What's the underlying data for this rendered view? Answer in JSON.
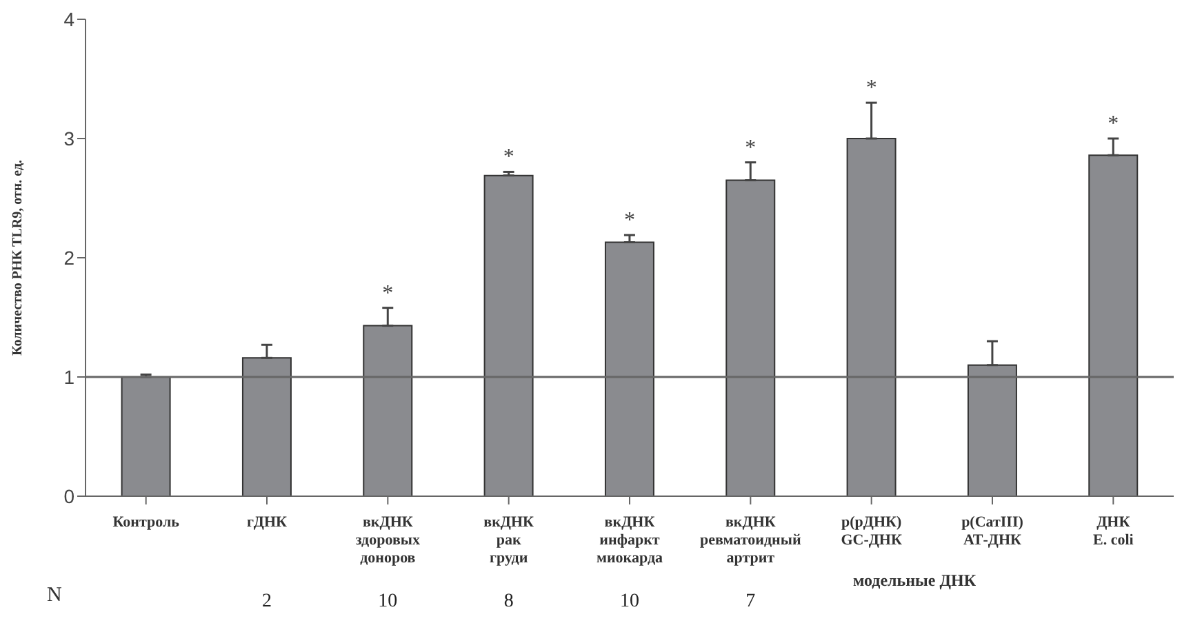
{
  "chart_data": {
    "type": "bar",
    "ylabel": "Количество РНК TLR9, отн. ед.",
    "categories": [
      "Контроль",
      "гДНК",
      "вкДНК\nздоровых\nдоноров",
      "вкДНК\nрак\nгруди",
      "вкДНК\nинфаркт\nмиокарда",
      "вкДНК\nревматоидный\nартрит",
      "р(рДНК)\nGC-ДНК",
      "р(СатIII)\nАТ-ДНК",
      "ДНК\nE. coli"
    ],
    "values": [
      1.0,
      1.16,
      1.43,
      2.69,
      2.13,
      2.65,
      3.0,
      1.1,
      2.86
    ],
    "errors": [
      0.02,
      0.11,
      0.15,
      0.03,
      0.06,
      0.15,
      0.3,
      0.2,
      0.14
    ],
    "color": "#8a8b8f",
    "ylim": [
      0,
      4
    ],
    "yticks": [
      0,
      1,
      2,
      3,
      4
    ],
    "ref_lines": [
      {
        "axis": "y",
        "value": 1
      }
    ],
    "annotations": [
      "N",
      "модельные ДНК",
      "2",
      "10",
      "8",
      "10",
      "7",
      "*",
      "*",
      "*",
      "*",
      "*",
      "*"
    ]
  }
}
